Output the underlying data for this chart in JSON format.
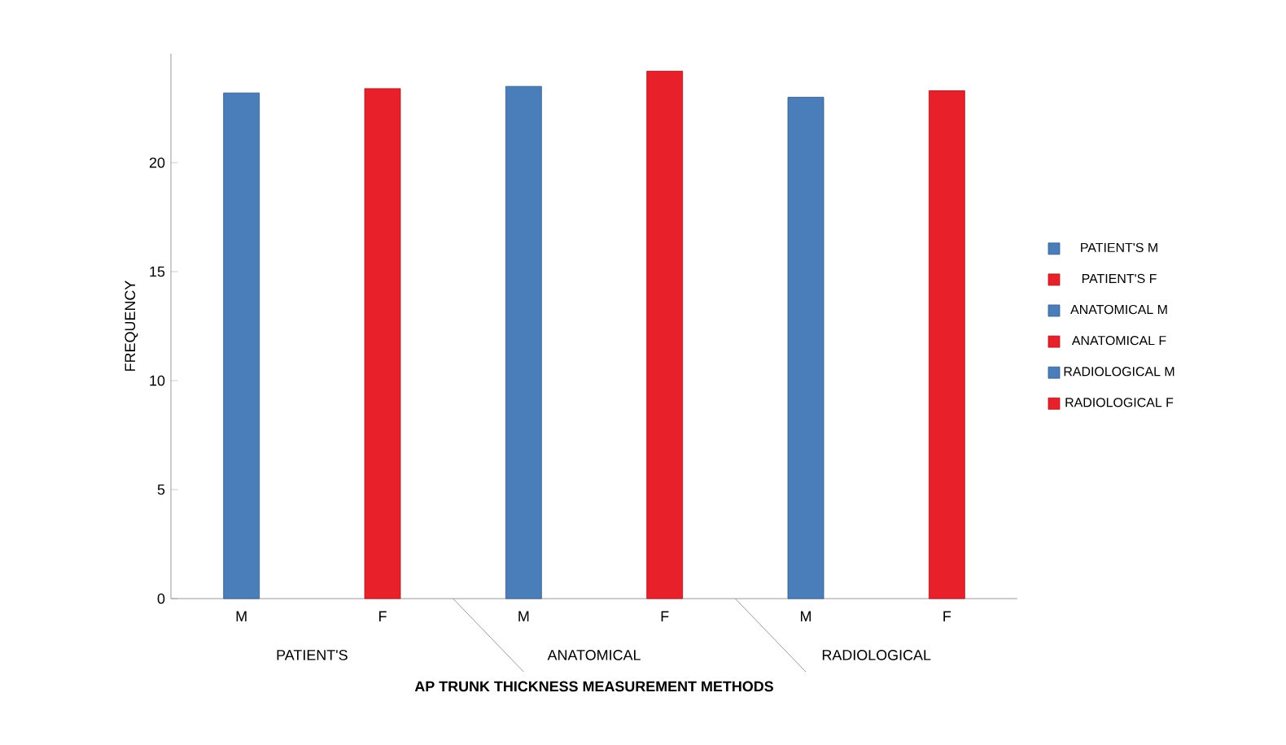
{
  "chart_data": {
    "type": "bar",
    "xlabel": "AP TRUNK THICKNESS MEASUREMENT METHODS",
    "ylabel": "FREQUENCY",
    "categories": [
      "M",
      "F",
      "M",
      "F",
      "M",
      "F"
    ],
    "annotations": [
      "PATIENT'S",
      "ANATOMICAL",
      "RADIOLOGICAL"
    ],
    "series": [
      {
        "name": "PATIENT'S  M",
        "color": "#4a7ebb",
        "values": [
          23.2,
          null,
          null,
          null,
          null,
          null
        ]
      },
      {
        "name": "PATIENT'S  F",
        "color": "#e8202a",
        "values": [
          null,
          23.4,
          null,
          null,
          null,
          null
        ]
      },
      {
        "name": "ANATOMICAL M",
        "color": "#4a7ebb",
        "values": [
          null,
          null,
          23.5,
          null,
          null,
          null
        ]
      },
      {
        "name": "ANATOMICAL F",
        "color": "#e8202a",
        "values": [
          null,
          null,
          null,
          24.2,
          null,
          null
        ]
      },
      {
        "name": "RADIOLOGICAL M",
        "color": "#4a7ebb",
        "values": [
          null,
          null,
          null,
          null,
          23.0,
          null
        ]
      },
      {
        "name": "RADIOLOGICAL F",
        "color": "#e8202a",
        "values": [
          null,
          null,
          null,
          null,
          null,
          23.3
        ]
      }
    ],
    "ylim": [
      0,
      25
    ],
    "yticks": [
      0,
      5,
      10,
      15,
      20
    ],
    "grid": false,
    "legend": "right"
  }
}
